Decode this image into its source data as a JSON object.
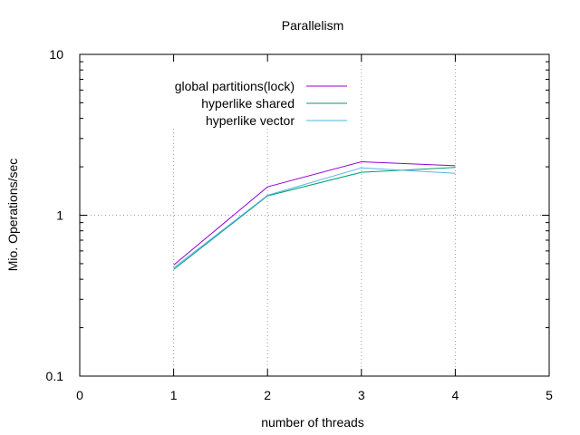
{
  "chart_data": {
    "type": "line",
    "title": "Parallelism",
    "xlabel": "number of threads",
    "ylabel": "Mio. Operations/sec",
    "xlim": [
      0,
      5
    ],
    "ylim": [
      0.1,
      10
    ],
    "y_scale": "log",
    "x_ticks": [
      0,
      1,
      2,
      3,
      4,
      5
    ],
    "x_tick_labels": [
      "0",
      "1",
      "2",
      "3",
      "4",
      "5"
    ],
    "y_ticks": [
      0.1,
      1,
      10
    ],
    "y_tick_labels": [
      "0.1",
      "1",
      "10"
    ],
    "grid": true,
    "legend_position": "top-left",
    "series": [
      {
        "name": "global partitions(lock)",
        "color": "#9400d3",
        "x": [
          1,
          2,
          3,
          4
        ],
        "y": [
          0.49,
          1.5,
          2.15,
          2.03
        ]
      },
      {
        "name": "hyperlike shared",
        "color": "#009e73",
        "x": [
          1,
          2,
          3,
          4
        ],
        "y": [
          0.46,
          1.32,
          1.85,
          1.98
        ]
      },
      {
        "name": "hyperlike vector",
        "color": "#56b4e9",
        "x": [
          1,
          2,
          3,
          4
        ],
        "y": [
          0.47,
          1.33,
          1.97,
          1.82
        ]
      }
    ]
  }
}
